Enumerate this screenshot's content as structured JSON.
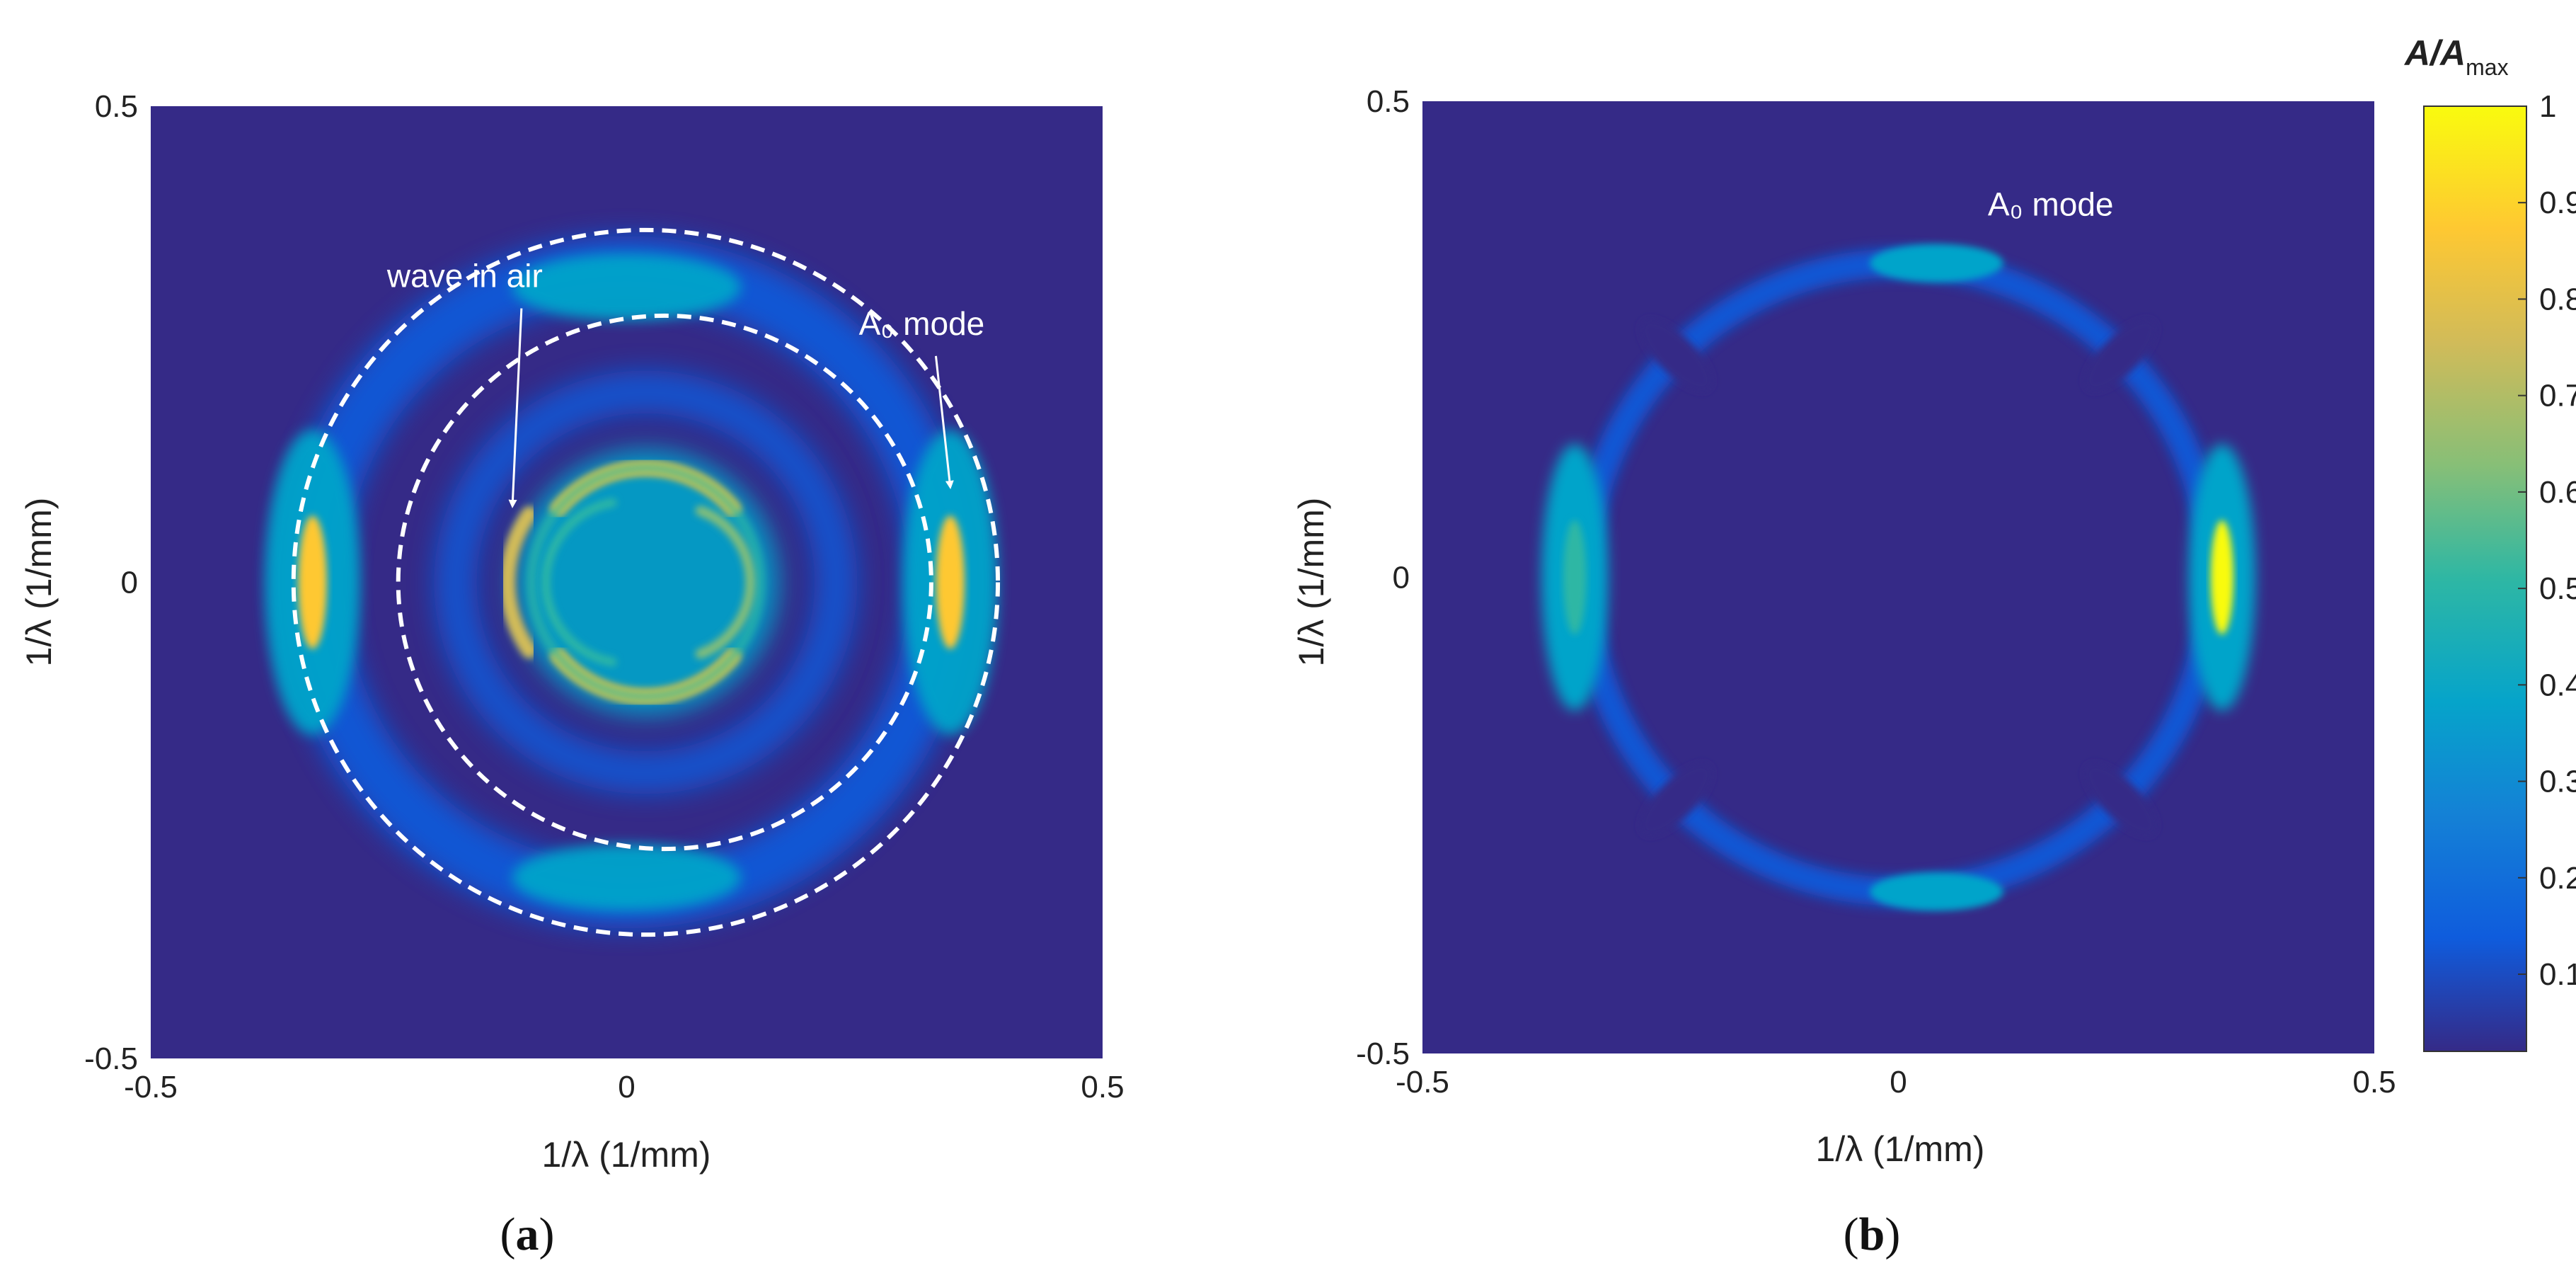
{
  "chart_data": [
    {
      "type": "heatmap",
      "panel_label": "(a)",
      "panel_letter": "a",
      "xlabel": "1/λ (1/mm)",
      "ylabel": "1/λ (1/mm)",
      "xlim": [
        -0.5,
        0.5
      ],
      "ylim": [
        -0.5,
        0.5
      ],
      "x_ticks": [
        "-0.5",
        "0",
        "0.5"
      ],
      "y_ticks": [
        "0.5",
        "0",
        "-0.5"
      ],
      "background_color": "#352a87",
      "features": [
        {
          "name": "wave in air ring",
          "shape": "ring",
          "cx": 0.0,
          "cy": 0.0,
          "radius": 0.12,
          "peak_amplitude": 0.8
        },
        {
          "name": "wave in air inner arc",
          "shape": "ring",
          "cx": 0.05,
          "cy": 0.0,
          "radius": 0.08,
          "peak_amplitude": 0.65
        },
        {
          "name": "A0 mode ring",
          "shape": "ring",
          "cx": 0.0,
          "cy": 0.0,
          "radius": 0.33,
          "peak_amplitude": 0.8
        }
      ],
      "guide_circles": [
        {
          "cx": 0.02,
          "cy": 0.0,
          "radius": 0.37,
          "style": "dashed"
        },
        {
          "cx": 0.04,
          "cy": 0.0,
          "radius": 0.28,
          "style": "dashed"
        }
      ],
      "annotations": [
        {
          "text": "wave in air",
          "x": -0.17,
          "y": 0.31,
          "arrow_to": [
            -0.12,
            0.08
          ]
        },
        {
          "text": "A₀ mode",
          "x": 0.31,
          "y": 0.26,
          "arrow_to": [
            0.34,
            0.1
          ]
        }
      ]
    },
    {
      "type": "heatmap",
      "panel_label": "(b)",
      "panel_letter": "b",
      "xlabel": "1/λ (1/mm)",
      "ylabel": "1/λ (1/mm)",
      "xlim": [
        -0.5,
        0.5
      ],
      "ylim": [
        -0.5,
        0.5
      ],
      "x_ticks": [
        "-0.5",
        "0",
        "0.5"
      ],
      "y_ticks": [
        "0.5",
        "0",
        "-0.5"
      ],
      "background_color": "#352a87",
      "features": [
        {
          "name": "A0 mode ring",
          "shape": "ring",
          "cx": 0.0,
          "cy": 0.0,
          "radius": 0.33,
          "peak_amplitude": 0.8
        }
      ],
      "annotations": [
        {
          "text": "A₀ mode",
          "x": 0.16,
          "y": 0.38
        }
      ],
      "colorbar": {
        "title": "A/A",
        "title_subscript": "max",
        "range": [
          0.02,
          1
        ],
        "ticks": [
          "1",
          "0.9",
          "0.8",
          "0.7",
          "0.6",
          "0.5",
          "0.4",
          "0.3",
          "0.2",
          "0.1"
        ],
        "tick_values": [
          1,
          0.9,
          0.8,
          0.7,
          0.6,
          0.5,
          0.4,
          0.3,
          0.2,
          0.1
        ],
        "colormap": "parula",
        "colors": [
          "#352a87",
          "#0f5cdd",
          "#1481d6",
          "#06a4ca",
          "#2eb7a4",
          "#87bf77",
          "#d1bb59",
          "#fec832",
          "#f9fb0e"
        ]
      }
    }
  ]
}
